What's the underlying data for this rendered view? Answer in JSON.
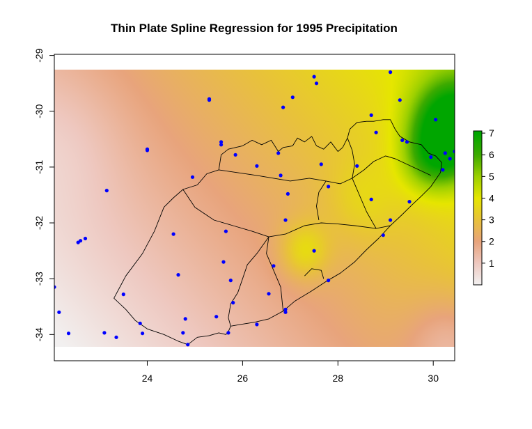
{
  "chart_data": {
    "type": "heatmap",
    "title": "Thin Plate Spline Regression for 1995 Precipitation",
    "xlabel": "",
    "ylabel": "",
    "xlim": [
      22.05,
      30.45
    ],
    "ylim": [
      -34.47,
      -28.98
    ],
    "raster_extent": {
      "x": [
        22.05,
        30.45
      ],
      "y": [
        -34.22,
        -29.25
      ]
    },
    "x_ticks": [
      24,
      26,
      28,
      30
    ],
    "x_tick_labels": [
      "24",
      "26",
      "28",
      "30"
    ],
    "y_ticks": [
      -29,
      -30,
      -31,
      -32,
      -33,
      -34
    ],
    "y_tick_labels": [
      "-29",
      "-30",
      "-31",
      "-32",
      "-33",
      "-34"
    ],
    "legend": {
      "placement": "right",
      "min": 0,
      "max": 7.1,
      "ticks": [
        1,
        2,
        3,
        4,
        5,
        6,
        7
      ],
      "tick_labels": [
        "1",
        "2",
        "3",
        "4",
        "5",
        "6",
        "7"
      ],
      "color_stops": [
        {
          "value": 0,
          "color": "#f2f2f2"
        },
        {
          "value": 1,
          "color": "#eec8c0"
        },
        {
          "value": 2,
          "color": "#e8a47c"
        },
        {
          "value": 3,
          "color": "#e8c23a"
        },
        {
          "value": 4,
          "color": "#e6e600"
        },
        {
          "value": 5,
          "color": "#9cd000"
        },
        {
          "value": 6,
          "color": "#3caa00"
        },
        {
          "value": 7,
          "color": "#00a600"
        }
      ]
    },
    "surface_model": {
      "trend": {
        "base": 2.25,
        "x_coef": 0.33,
        "y_coef": 0.33,
        "x_center": 26.5,
        "y_center": -31.75
      },
      "bumps": [
        {
          "x": 30.4,
          "y": -30.3,
          "amplitude": 4.8,
          "radius": 0.8
        },
        {
          "x": 29.9,
          "y": -30.9,
          "amplitude": 1.5,
          "radius": 0.6
        },
        {
          "x": 27.3,
          "y": -32.5,
          "amplitude": 1.4,
          "radius": 0.5
        },
        {
          "x": 28.5,
          "y": -31.6,
          "amplitude": 0.6,
          "radius": 0.7
        },
        {
          "x": 30.4,
          "y": -34.2,
          "amplitude": -1.2,
          "radius": 0.9
        },
        {
          "x": 22.3,
          "y": -30.5,
          "amplitude": -0.4,
          "radius": 1.3
        }
      ]
    },
    "points_color": "#0000ff",
    "points": [
      [
        22.05,
        -33.15
      ],
      [
        22.15,
        -33.6
      ],
      [
        22.35,
        -33.98
      ],
      [
        22.55,
        -32.35
      ],
      [
        22.6,
        -32.32
      ],
      [
        22.7,
        -32.28
      ],
      [
        23.1,
        -33.97
      ],
      [
        23.15,
        -31.42
      ],
      [
        23.35,
        -34.05
      ],
      [
        23.5,
        -33.28
      ],
      [
        23.85,
        -33.8
      ],
      [
        23.9,
        -33.98
      ],
      [
        24.0,
        -30.68
      ],
      [
        24.0,
        -30.7
      ],
      [
        24.55,
        -32.2
      ],
      [
        24.65,
        -32.93
      ],
      [
        24.75,
        -33.97
      ],
      [
        24.8,
        -33.72
      ],
      [
        24.85,
        -34.18
      ],
      [
        24.95,
        -31.18
      ],
      [
        25.3,
        -29.78
      ],
      [
        25.3,
        -29.8
      ],
      [
        25.45,
        -33.68
      ],
      [
        25.55,
        -30.55
      ],
      [
        25.55,
        -30.6
      ],
      [
        25.6,
        -32.7
      ],
      [
        25.65,
        -32.15
      ],
      [
        25.7,
        -33.97
      ],
      [
        25.75,
        -33.03
      ],
      [
        25.8,
        -33.43
      ],
      [
        25.85,
        -30.78
      ],
      [
        26.3,
        -33.82
      ],
      [
        26.3,
        -30.98
      ],
      [
        26.55,
        -33.27
      ],
      [
        26.65,
        -32.77
      ],
      [
        26.75,
        -30.75
      ],
      [
        26.8,
        -31.15
      ],
      [
        26.85,
        -29.93
      ],
      [
        26.9,
        -31.95
      ],
      [
        26.9,
        -33.55
      ],
      [
        26.9,
        -33.6
      ],
      [
        26.95,
        -31.48
      ],
      [
        27.05,
        -29.75
      ],
      [
        27.5,
        -32.5
      ],
      [
        27.5,
        -29.38
      ],
      [
        27.55,
        -29.5
      ],
      [
        27.65,
        -30.95
      ],
      [
        27.8,
        -31.35
      ],
      [
        27.8,
        -33.03
      ],
      [
        28.4,
        -30.98
      ],
      [
        28.7,
        -31.58
      ],
      [
        28.7,
        -30.07
      ],
      [
        28.8,
        -30.38
      ],
      [
        28.95,
        -32.22
      ],
      [
        29.1,
        -31.95
      ],
      [
        29.1,
        -29.3
      ],
      [
        29.3,
        -29.8
      ],
      [
        29.35,
        -30.52
      ],
      [
        29.45,
        -30.55
      ],
      [
        29.5,
        -31.62
      ],
      [
        29.95,
        -30.82
      ],
      [
        30.05,
        -30.15
      ],
      [
        30.2,
        -31.05
      ],
      [
        30.25,
        -30.75
      ],
      [
        30.35,
        -30.85
      ],
      [
        30.45,
        -30.72
      ]
    ],
    "boundary_outline": [
      [
        23.3,
        -33.35
      ],
      [
        23.55,
        -32.95
      ],
      [
        23.9,
        -32.55
      ],
      [
        24.15,
        -32.15
      ],
      [
        24.35,
        -31.72
      ],
      [
        24.55,
        -31.55
      ],
      [
        24.75,
        -31.4
      ],
      [
        25.05,
        -31.32
      ],
      [
        25.25,
        -31.12
      ],
      [
        25.5,
        -31.05
      ],
      [
        25.55,
        -30.78
      ],
      [
        25.7,
        -30.68
      ],
      [
        25.85,
        -30.65
      ],
      [
        26.0,
        -30.62
      ],
      [
        26.2,
        -30.52
      ],
      [
        26.4,
        -30.6
      ],
      [
        26.6,
        -30.52
      ],
      [
        26.75,
        -30.72
      ],
      [
        26.85,
        -30.65
      ],
      [
        27.05,
        -30.62
      ],
      [
        27.15,
        -30.48
      ],
      [
        27.3,
        -30.55
      ],
      [
        27.45,
        -30.45
      ],
      [
        27.55,
        -30.62
      ],
      [
        27.7,
        -30.68
      ],
      [
        27.85,
        -30.55
      ],
      [
        28.0,
        -30.72
      ],
      [
        28.1,
        -30.65
      ],
      [
        28.2,
        -30.48
      ],
      [
        28.25,
        -30.32
      ],
      [
        28.4,
        -30.2
      ],
      [
        28.6,
        -30.18
      ],
      [
        28.75,
        -30.18
      ],
      [
        28.95,
        -30.15
      ],
      [
        29.1,
        -30.15
      ],
      [
        29.2,
        -30.32
      ],
      [
        29.3,
        -30.45
      ],
      [
        29.5,
        -30.55
      ],
      [
        29.75,
        -30.6
      ],
      [
        29.9,
        -30.75
      ],
      [
        30.05,
        -30.8
      ],
      [
        30.18,
        -30.92
      ],
      [
        30.15,
        -31.1
      ],
      [
        29.95,
        -31.35
      ],
      [
        29.75,
        -31.52
      ],
      [
        29.55,
        -31.68
      ],
      [
        29.35,
        -31.85
      ],
      [
        29.1,
        -32.05
      ],
      [
        28.85,
        -32.28
      ],
      [
        28.6,
        -32.48
      ],
      [
        28.35,
        -32.7
      ],
      [
        28.05,
        -32.9
      ],
      [
        27.75,
        -33.05
      ],
      [
        27.45,
        -33.22
      ],
      [
        27.1,
        -33.4
      ],
      [
        26.85,
        -33.58
      ],
      [
        26.55,
        -33.72
      ],
      [
        26.25,
        -33.78
      ],
      [
        25.95,
        -33.82
      ],
      [
        25.75,
        -33.85
      ],
      [
        25.7,
        -33.95
      ],
      [
        25.65,
        -34.0
      ],
      [
        25.5,
        -33.97
      ],
      [
        25.3,
        -34.02
      ],
      [
        25.05,
        -34.05
      ],
      [
        24.85,
        -34.18
      ],
      [
        24.65,
        -34.12
      ],
      [
        24.35,
        -34.0
      ],
      [
        24.0,
        -33.9
      ],
      [
        23.75,
        -33.75
      ],
      [
        23.55,
        -33.55
      ],
      [
        23.3,
        -33.35
      ]
    ],
    "internal_boundaries": [
      [
        [
          24.75,
          -31.4
        ],
        [
          25.0,
          -31.72
        ],
        [
          25.4,
          -31.95
        ],
        [
          25.8,
          -32.05
        ],
        [
          26.2,
          -32.15
        ],
        [
          26.55,
          -32.25
        ]
      ],
      [
        [
          26.55,
          -32.25
        ],
        [
          26.9,
          -32.2
        ],
        [
          27.3,
          -32.05
        ],
        [
          27.65,
          -32.0
        ],
        [
          28.0,
          -32.02
        ],
        [
          28.35,
          -32.05
        ],
        [
          28.8,
          -32.1
        ],
        [
          29.1,
          -32.05
        ]
      ],
      [
        [
          26.55,
          -32.25
        ],
        [
          26.3,
          -32.55
        ],
        [
          26.1,
          -32.75
        ],
        [
          26.0,
          -33.0
        ],
        [
          25.9,
          -33.25
        ],
        [
          25.75,
          -33.45
        ],
        [
          25.7,
          -33.7
        ],
        [
          25.75,
          -33.85
        ]
      ],
      [
        [
          26.55,
          -32.25
        ],
        [
          26.5,
          -32.55
        ],
        [
          26.65,
          -32.85
        ],
        [
          26.8,
          -33.15
        ],
        [
          26.85,
          -33.58
        ]
      ],
      [
        [
          25.5,
          -31.05
        ],
        [
          25.9,
          -31.1
        ],
        [
          26.3,
          -31.15
        ],
        [
          26.65,
          -31.2
        ],
        [
          27.0,
          -31.25
        ],
        [
          27.4,
          -31.2
        ],
        [
          27.75,
          -31.25
        ],
        [
          28.05,
          -31.3
        ],
        [
          28.3,
          -31.2
        ]
      ],
      [
        [
          27.75,
          -31.25
        ],
        [
          27.6,
          -31.45
        ],
        [
          27.55,
          -31.7
        ],
        [
          27.6,
          -31.95
        ]
      ],
      [
        [
          28.3,
          -31.2
        ],
        [
          28.55,
          -31.05
        ],
        [
          28.75,
          -30.9
        ],
        [
          29.0,
          -30.8
        ],
        [
          29.2,
          -30.85
        ],
        [
          29.45,
          -30.95
        ],
        [
          29.7,
          -31.05
        ],
        [
          29.95,
          -31.15
        ]
      ],
      [
        [
          28.3,
          -31.2
        ],
        [
          28.45,
          -31.5
        ],
        [
          28.6,
          -31.8
        ],
        [
          28.8,
          -32.1
        ]
      ],
      [
        [
          28.2,
          -30.48
        ],
        [
          28.3,
          -30.7
        ],
        [
          28.35,
          -30.95
        ],
        [
          28.3,
          -31.2
        ]
      ],
      [
        [
          27.3,
          -32.95
        ],
        [
          27.45,
          -32.82
        ],
        [
          27.65,
          -32.85
        ],
        [
          27.7,
          -33.0
        ]
      ]
    ]
  }
}
